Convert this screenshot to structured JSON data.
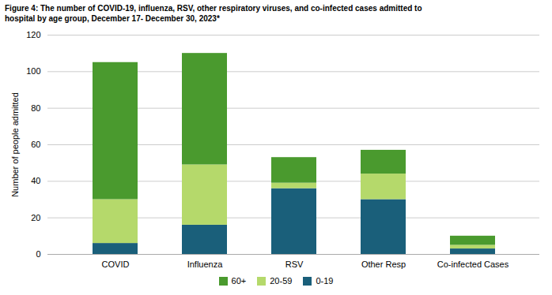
{
  "chart_data": {
    "type": "bar",
    "stacked": true,
    "title": "Figure 4: The number of COVID-19, influenza, RSV, other respiratory viruses, and co-infected cases admitted to\nhospital by age group, December 17- December 30, 2023*",
    "categories": [
      "COVID",
      "Influenza",
      "RSV",
      "Other Resp",
      "Co-infected Cases"
    ],
    "series": [
      {
        "name": "0-19",
        "color": "#1a5f7a",
        "values": [
          6,
          16,
          36,
          30,
          3
        ]
      },
      {
        "name": "20-59",
        "color": "#b5d96b",
        "values": [
          24,
          33,
          3,
          14,
          2
        ]
      },
      {
        "name": "60+",
        "color": "#4a9a2e",
        "values": [
          75,
          61,
          14,
          13,
          5
        ]
      }
    ],
    "ylabel": "Number of people admitted",
    "ylim": [
      0,
      120
    ],
    "yticks": [
      0,
      20,
      40,
      60,
      80,
      100,
      120
    ],
    "grid": true,
    "legend": "bottom"
  }
}
